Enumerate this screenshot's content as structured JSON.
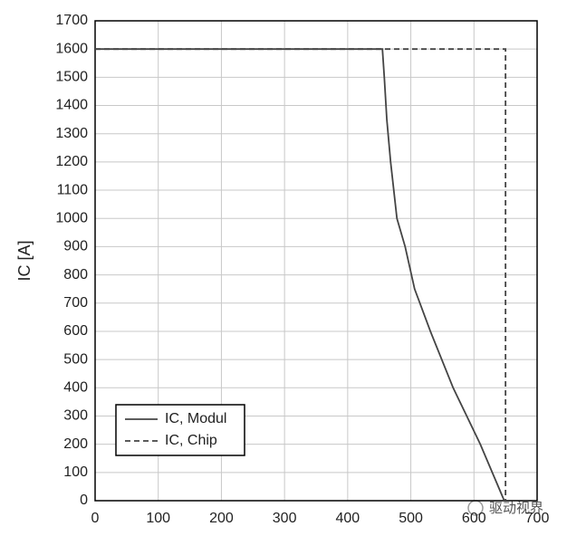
{
  "chart_data": {
    "type": "line",
    "y_label": "IC [A]",
    "xlim": [
      0,
      700
    ],
    "ylim": [
      0,
      1700
    ],
    "xticks": [
      0,
      100,
      200,
      300,
      400,
      500,
      600,
      700
    ],
    "yticks": [
      0,
      100,
      200,
      300,
      400,
      500,
      600,
      700,
      800,
      900,
      1000,
      1100,
      1200,
      1300,
      1400,
      1500,
      1600,
      1700
    ],
    "grid": true,
    "legend": "lower left",
    "series": [
      {
        "name": "IC, Modul",
        "color": "#444444",
        "linestyle": "solid",
        "x": [
          0,
          455,
          458,
          462,
          468,
          478,
          491,
          506,
          531,
          567,
          610,
          648
        ],
        "values": [
          1600,
          1600,
          1500,
          1350,
          1200,
          1000,
          900,
          750,
          600,
          400,
          200,
          0
        ]
      },
      {
        "name": "IC, Chip",
        "color": "#444444",
        "linestyle": "dashed",
        "x": [
          0,
          650,
          650
        ],
        "values": [
          1600,
          1600,
          0
        ]
      }
    ],
    "watermark": "驱动视界"
  }
}
